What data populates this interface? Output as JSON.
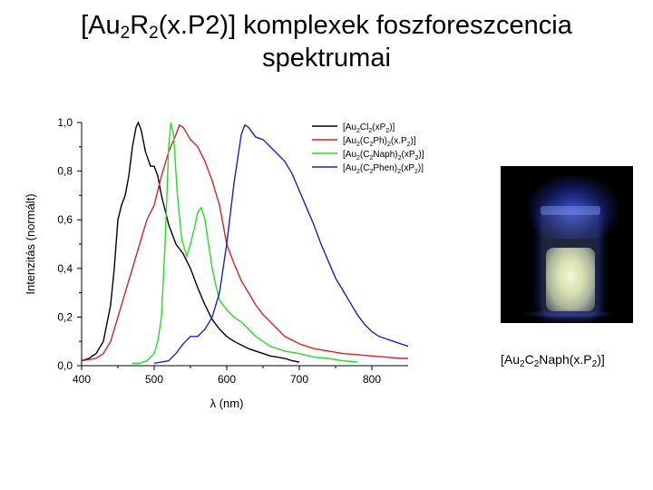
{
  "slide": {
    "title_parts": [
      "[Au",
      "2",
      "R",
      "2",
      "(x.P2)] komplexek foszforeszcencia"
    ],
    "title_line2": "spektrumai"
  },
  "photo": {
    "caption_parts": [
      "[Au",
      "2",
      "C",
      "2",
      "Naph(x.P",
      "2",
      ")]"
    ]
  },
  "chart_data": {
    "type": "line",
    "title": "",
    "xlabel": "λ (nm)",
    "ylabel": "Intenzitás (normált)",
    "xlim": [
      400,
      850
    ],
    "ylim": [
      0,
      1.0
    ],
    "xticks": [
      400,
      500,
      600,
      700,
      800
    ],
    "xtick_labels": [
      "400",
      "500",
      "600",
      "700",
      "800"
    ],
    "yticks": [
      0,
      0.2,
      0.4,
      0.6,
      0.8,
      1.0
    ],
    "ytick_labels": [
      "0,0",
      "0,2",
      "0,4",
      "0,6",
      "0,8",
      "1,0"
    ],
    "legend_position": "top-right",
    "grid": false,
    "series": [
      {
        "name_parts": [
          "[Au",
          "2",
          "Cl",
          "2",
          "(xP",
          "2",
          ")]"
        ],
        "color": "#000000",
        "points": [
          [
            400,
            0.02
          ],
          [
            410,
            0.03
          ],
          [
            420,
            0.05
          ],
          [
            430,
            0.1
          ],
          [
            440,
            0.25
          ],
          [
            445,
            0.4
          ],
          [
            450,
            0.6
          ],
          [
            455,
            0.66
          ],
          [
            460,
            0.7
          ],
          [
            465,
            0.78
          ],
          [
            470,
            0.9
          ],
          [
            475,
            0.98
          ],
          [
            478,
            1.0
          ],
          [
            482,
            0.97
          ],
          [
            488,
            0.88
          ],
          [
            495,
            0.82
          ],
          [
            500,
            0.82
          ],
          [
            505,
            0.78
          ],
          [
            510,
            0.7
          ],
          [
            520,
            0.58
          ],
          [
            530,
            0.5
          ],
          [
            540,
            0.46
          ],
          [
            550,
            0.4
          ],
          [
            560,
            0.32
          ],
          [
            570,
            0.25
          ],
          [
            580,
            0.19
          ],
          [
            590,
            0.15
          ],
          [
            600,
            0.12
          ],
          [
            610,
            0.1
          ],
          [
            620,
            0.085
          ],
          [
            630,
            0.07
          ],
          [
            640,
            0.06
          ],
          [
            650,
            0.05
          ],
          [
            660,
            0.04
          ],
          [
            670,
            0.035
          ],
          [
            680,
            0.03
          ],
          [
            690,
            0.02
          ],
          [
            700,
            0.015
          ]
        ]
      },
      {
        "name_parts": [
          "[Au",
          "2",
          "(C",
          "2",
          "Ph)",
          "2",
          "(x.P",
          "2",
          ")]"
        ],
        "color": "#e02020",
        "points": [
          [
            400,
            0.02
          ],
          [
            420,
            0.03
          ],
          [
            430,
            0.05
          ],
          [
            440,
            0.1
          ],
          [
            450,
            0.2
          ],
          [
            460,
            0.3
          ],
          [
            470,
            0.4
          ],
          [
            480,
            0.5
          ],
          [
            490,
            0.6
          ],
          [
            500,
            0.66
          ],
          [
            510,
            0.78
          ],
          [
            520,
            0.88
          ],
          [
            530,
            0.95
          ],
          [
            535,
            0.99
          ],
          [
            540,
            0.98
          ],
          [
            550,
            0.93
          ],
          [
            560,
            0.9
          ],
          [
            570,
            0.84
          ],
          [
            580,
            0.76
          ],
          [
            590,
            0.66
          ],
          [
            600,
            0.5
          ],
          [
            610,
            0.42
          ],
          [
            620,
            0.35
          ],
          [
            630,
            0.3
          ],
          [
            640,
            0.25
          ],
          [
            650,
            0.21
          ],
          [
            660,
            0.18
          ],
          [
            680,
            0.12
          ],
          [
            700,
            0.09
          ],
          [
            720,
            0.07
          ],
          [
            740,
            0.06
          ],
          [
            760,
            0.05
          ],
          [
            780,
            0.045
          ],
          [
            800,
            0.04
          ],
          [
            820,
            0.035
          ],
          [
            840,
            0.03
          ],
          [
            850,
            0.03
          ]
        ]
      },
      {
        "name_parts": [
          "[Au",
          "2",
          "(C",
          "2",
          "Naph)",
          "2",
          "(xP",
          "2",
          ")]"
        ],
        "color": "#22e022",
        "points": [
          [
            470,
            0.01
          ],
          [
            480,
            0.01
          ],
          [
            490,
            0.02
          ],
          [
            500,
            0.05
          ],
          [
            505,
            0.1
          ],
          [
            510,
            0.2
          ],
          [
            515,
            0.5
          ],
          [
            520,
            0.9
          ],
          [
            523,
            1.0
          ],
          [
            527,
            0.94
          ],
          [
            532,
            0.7
          ],
          [
            538,
            0.52
          ],
          [
            545,
            0.45
          ],
          [
            550,
            0.5
          ],
          [
            555,
            0.56
          ],
          [
            560,
            0.63
          ],
          [
            565,
            0.65
          ],
          [
            570,
            0.6
          ],
          [
            575,
            0.5
          ],
          [
            580,
            0.4
          ],
          [
            585,
            0.33
          ],
          [
            590,
            0.27
          ],
          [
            600,
            0.23
          ],
          [
            610,
            0.2
          ],
          [
            620,
            0.18
          ],
          [
            630,
            0.15
          ],
          [
            640,
            0.12
          ],
          [
            650,
            0.1
          ],
          [
            660,
            0.08
          ],
          [
            680,
            0.06
          ],
          [
            700,
            0.05
          ],
          [
            720,
            0.035
          ],
          [
            740,
            0.03
          ],
          [
            760,
            0.02
          ],
          [
            780,
            0.015
          ]
        ]
      },
      {
        "name_parts": [
          "[Au",
          "2",
          "(C",
          "2",
          "Phen)",
          "2",
          "(xP",
          "2",
          ")]"
        ],
        "color": "#2020c0",
        "points": [
          [
            500,
            0.01
          ],
          [
            520,
            0.02
          ],
          [
            530,
            0.05
          ],
          [
            540,
            0.09
          ],
          [
            550,
            0.12
          ],
          [
            560,
            0.12
          ],
          [
            570,
            0.15
          ],
          [
            580,
            0.2
          ],
          [
            590,
            0.3
          ],
          [
            600,
            0.5
          ],
          [
            610,
            0.75
          ],
          [
            620,
            0.95
          ],
          [
            625,
            0.99
          ],
          [
            630,
            0.98
          ],
          [
            640,
            0.94
          ],
          [
            650,
            0.93
          ],
          [
            660,
            0.9
          ],
          [
            670,
            0.87
          ],
          [
            680,
            0.84
          ],
          [
            690,
            0.79
          ],
          [
            700,
            0.72
          ],
          [
            710,
            0.65
          ],
          [
            720,
            0.58
          ],
          [
            730,
            0.5
          ],
          [
            740,
            0.43
          ],
          [
            750,
            0.36
          ],
          [
            760,
            0.31
          ],
          [
            770,
            0.26
          ],
          [
            780,
            0.21
          ],
          [
            790,
            0.17
          ],
          [
            800,
            0.14
          ],
          [
            810,
            0.12
          ],
          [
            820,
            0.11
          ],
          [
            830,
            0.1
          ],
          [
            840,
            0.09
          ],
          [
            850,
            0.08
          ]
        ]
      }
    ]
  }
}
